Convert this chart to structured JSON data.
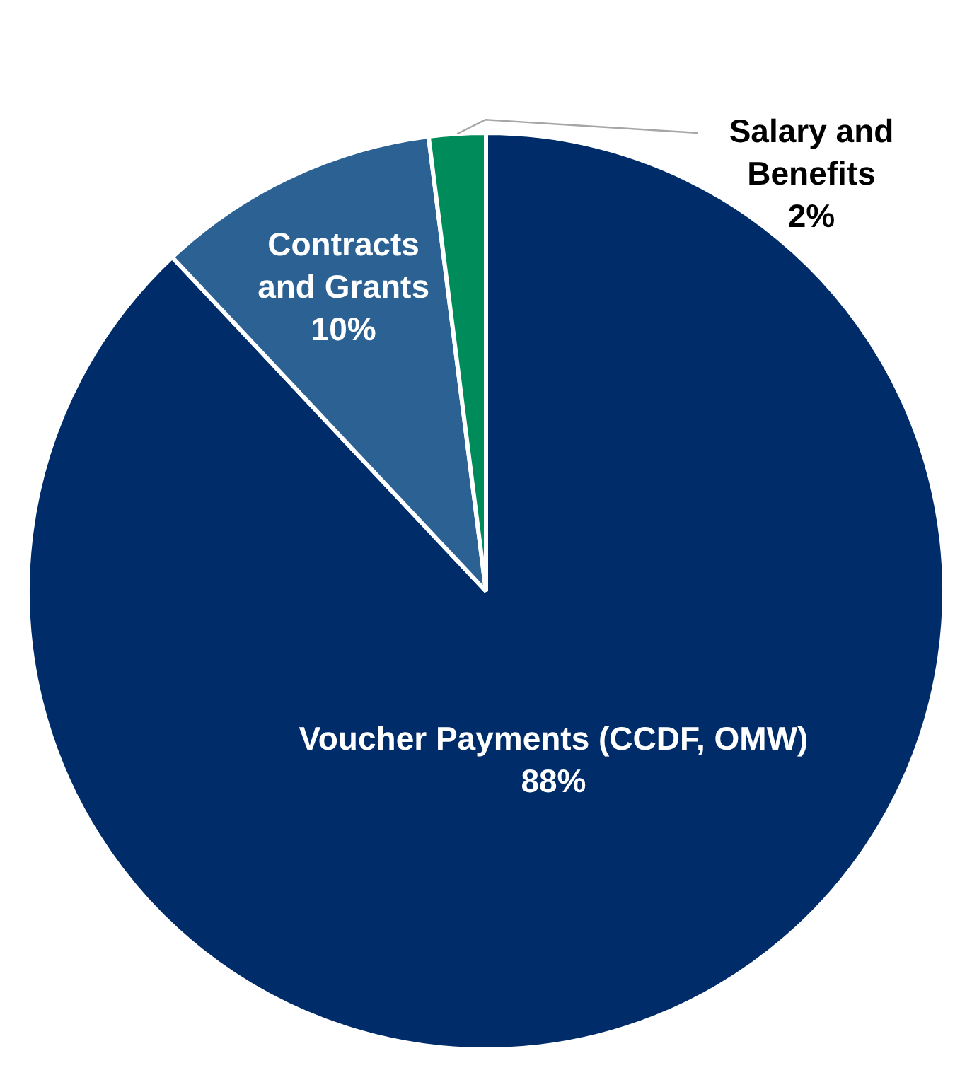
{
  "chart_data": {
    "type": "pie",
    "categories": [
      "Voucher Payments (CCDF, OMW)",
      "Contracts and Grants",
      "Salary and Benefits"
    ],
    "values": [
      88,
      10,
      2
    ],
    "colors": [
      "#002d6a",
      "#2b6193",
      "#008c5a"
    ],
    "value_labels": [
      "88%",
      "10%",
      "2%"
    ],
    "legend": false
  }
}
